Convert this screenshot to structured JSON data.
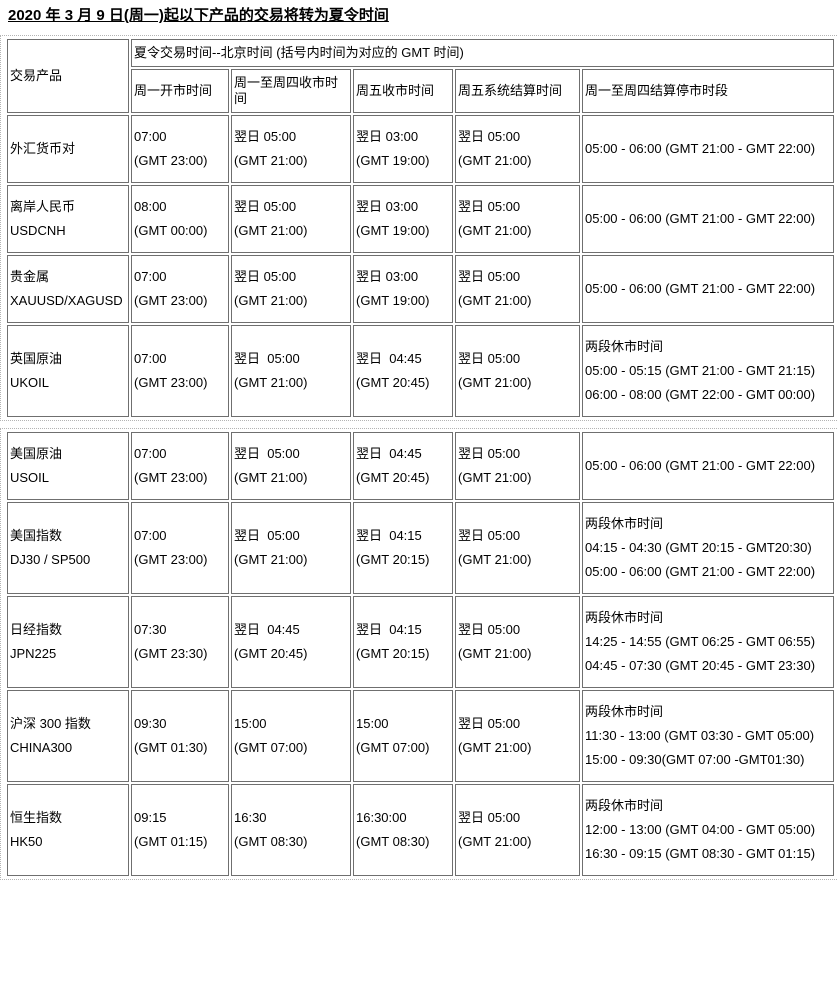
{
  "page": {
    "title": "2020 年 3 月 9 日(周一)起以下产品的交易将转为夏令时间"
  },
  "colors": {
    "background": "#ffffff",
    "text": "#000000",
    "cell_border": "#6f6f6f",
    "table_outer_border": "#b4b4b4"
  },
  "header": {
    "product_col": "交易产品",
    "group": "夏令交易时间--北京时间 (括号内时间为对应的 GMT 时间)",
    "columns": [
      "周一开市时间",
      "周一至周四收市时间",
      "周五收市时间",
      "周五系统结算时间",
      "周一至周四结算停市时段"
    ]
  },
  "table1": {
    "rows": [
      {
        "cells": [
          [
            "外汇货币对"
          ],
          [
            "07:00",
            "(GMT 23:00)"
          ],
          [
            "翌日 05:00",
            "(GMT 21:00)"
          ],
          [
            "翌日 03:00",
            "(GMT 19:00)"
          ],
          [
            "翌日 05:00",
            "(GMT 21:00)"
          ],
          [
            "05:00 - 06:00 (GMT 21:00 - GMT 22:00)"
          ]
        ]
      },
      {
        "cells": [
          [
            "离岸人民币",
            "USDCNH"
          ],
          [
            "08:00",
            "(GMT 00:00)"
          ],
          [
            "翌日 05:00",
            "(GMT 21:00)"
          ],
          [
            "翌日 03:00",
            "(GMT 19:00)"
          ],
          [
            "翌日 05:00",
            "(GMT 21:00)"
          ],
          [
            "05:00 - 06:00 (GMT 21:00 - GMT 22:00)"
          ]
        ]
      },
      {
        "cells": [
          [
            "贵金属",
            "XAUUSD/XAGUSD"
          ],
          [
            "07:00",
            "(GMT 23:00)"
          ],
          [
            "翌日 05:00",
            "(GMT 21:00)"
          ],
          [
            "翌日 03:00",
            "(GMT 19:00)"
          ],
          [
            "翌日 05:00",
            "(GMT 21:00)"
          ],
          [
            "05:00 - 06:00 (GMT 21:00 - GMT 22:00)"
          ]
        ]
      },
      {
        "cells": [
          [
            "英国原油",
            "UKOIL"
          ],
          [
            "07:00",
            "(GMT 23:00)"
          ],
          [
            "翌日  05:00",
            "(GMT 21:00)"
          ],
          [
            "翌日  04:45",
            "(GMT 20:45)"
          ],
          [
            "翌日 05:00",
            "(GMT 21:00)"
          ],
          [
            "两段休市时间",
            "05:00 - 05:15 (GMT 21:00 - GMT 21:15)",
            "06:00 - 08:00 (GMT 22:00 - GMT 00:00)"
          ]
        ]
      }
    ]
  },
  "table2": {
    "rows": [
      {
        "cells": [
          [
            "美国原油",
            "USOIL"
          ],
          [
            "07:00",
            "(GMT 23:00)"
          ],
          [
            "翌日  05:00",
            "(GMT 21:00)"
          ],
          [
            "翌日  04:45",
            "(GMT 20:45)"
          ],
          [
            "翌日 05:00",
            "(GMT 21:00)"
          ],
          [
            "05:00 - 06:00 (GMT 21:00 - GMT 22:00)"
          ]
        ]
      },
      {
        "cells": [
          [
            "美国指数",
            "DJ30 / SP500"
          ],
          [
            "07:00",
            "(GMT 23:00)"
          ],
          [
            "翌日  05:00",
            "(GMT 21:00)"
          ],
          [
            "翌日  04:15",
            "(GMT 20:15)"
          ],
          [
            "翌日 05:00",
            "(GMT 21:00)"
          ],
          [
            "两段休市时间",
            "04:15 - 04:30 (GMT 20:15 - GMT20:30)",
            "05:00 - 06:00 (GMT 21:00 - GMT 22:00)"
          ]
        ]
      },
      {
        "cells": [
          [
            "日经指数",
            "JPN225"
          ],
          [
            "07:30",
            "(GMT 23:30)"
          ],
          [
            "翌日  04:45",
            "(GMT 20:45)"
          ],
          [
            "翌日  04:15",
            "(GMT 20:15)"
          ],
          [
            "翌日 05:00",
            "(GMT 21:00)"
          ],
          [
            "两段休市时间",
            "14:25 - 14:55 (GMT 06:25 - GMT 06:55)",
            "04:45 - 07:30 (GMT 20:45 - GMT 23:30)"
          ]
        ]
      },
      {
        "cells": [
          [
            "沪深 300 指数",
            "CHINA300"
          ],
          [
            "09:30",
            "(GMT 01:30)"
          ],
          [
            "15:00",
            "(GMT 07:00)"
          ],
          [
            "15:00",
            "(GMT 07:00)"
          ],
          [
            "翌日 05:00",
            "(GMT 21:00)"
          ],
          [
            "两段休市时间",
            "11:30 - 13:00 (GMT 03:30 - GMT 05:00)",
            "15:00 - 09:30(GMT 07:00 -GMT01:30)"
          ]
        ]
      },
      {
        "cells": [
          [
            "恒生指数",
            "HK50"
          ],
          [
            "09:15",
            "(GMT 01:15)"
          ],
          [
            "16:30",
            "(GMT 08:30)"
          ],
          [
            "16:30:00",
            "(GMT 08:30)"
          ],
          [
            "翌日 05:00",
            "(GMT 21:00)"
          ],
          [
            "两段休市时间",
            "12:00 - 13:00 (GMT 04:00 - GMT 05:00)",
            "16:30 - 09:15 (GMT 08:30 - GMT 01:15)"
          ]
        ]
      }
    ]
  }
}
